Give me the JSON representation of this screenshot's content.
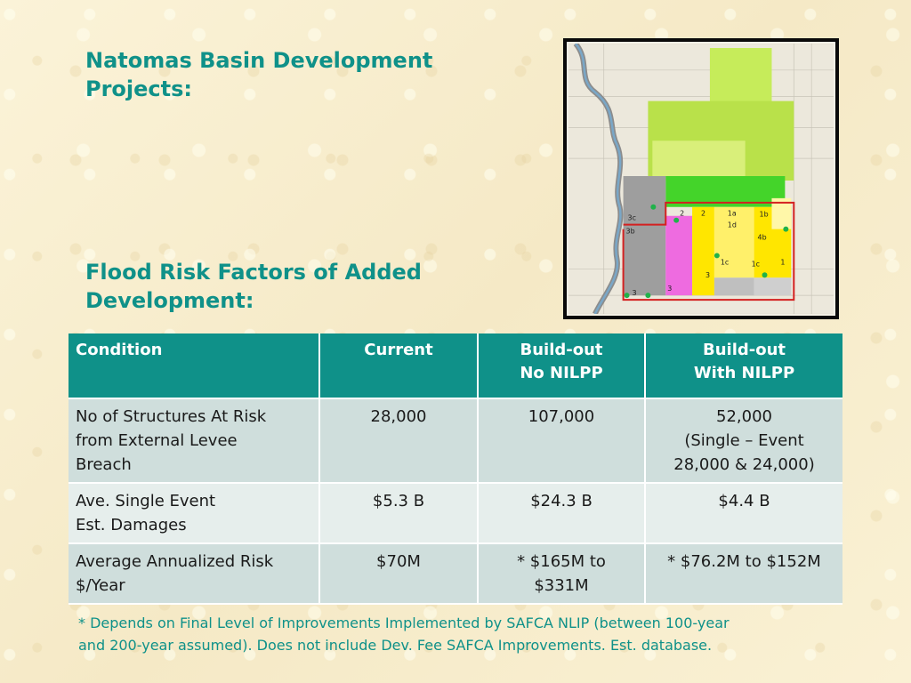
{
  "heading": {
    "line1": "Natomas Basin Development Projects:",
    "line2": "Flood Risk Factors of Added Development:"
  },
  "map": {
    "labels": [
      "1",
      "1a",
      "1b",
      "1c",
      "1d",
      "2",
      "3",
      "3b",
      "3c",
      "4b"
    ]
  },
  "table": {
    "headers": [
      [
        "Condition"
      ],
      [
        "Current"
      ],
      [
        "Build-out",
        "No NILPP"
      ],
      [
        "Build-out",
        "With NILPP"
      ]
    ],
    "rows": [
      {
        "condition": [
          "No of Structures At Risk",
          "from External Levee",
          "Breach"
        ],
        "current": [
          "28,000"
        ],
        "no_nilpp": [
          "107,000"
        ],
        "with_nilpp": [
          "52,000",
          "(Single – Event",
          "28,000 & 24,000)"
        ]
      },
      {
        "condition": [
          "Ave. Single Event",
          "Est. Damages"
        ],
        "current": [
          "$5.3 B"
        ],
        "no_nilpp": [
          "$24.3 B"
        ],
        "with_nilpp": [
          "$4.4 B"
        ]
      },
      {
        "condition": [
          "Average Annualized Risk",
          "$/Year"
        ],
        "current": [
          "$70M"
        ],
        "no_nilpp": [
          "* $165M to",
          "$331M"
        ],
        "with_nilpp": [
          "* $76.2M to $152M"
        ]
      }
    ]
  },
  "footnote": {
    "line1": "* Depends on Final Level of Improvements Implemented by SAFCA NLIP (between 100-year",
    "line2": "and 200-year assumed).  Does not include Dev. Fee SAFCA Improvements. Est. database."
  },
  "colors": {
    "heading": "#0f9189",
    "header_fill": "#0f9189",
    "row_dark": "#cfdedc",
    "row_light": "#e6eeec",
    "background": "#f8efcf"
  }
}
